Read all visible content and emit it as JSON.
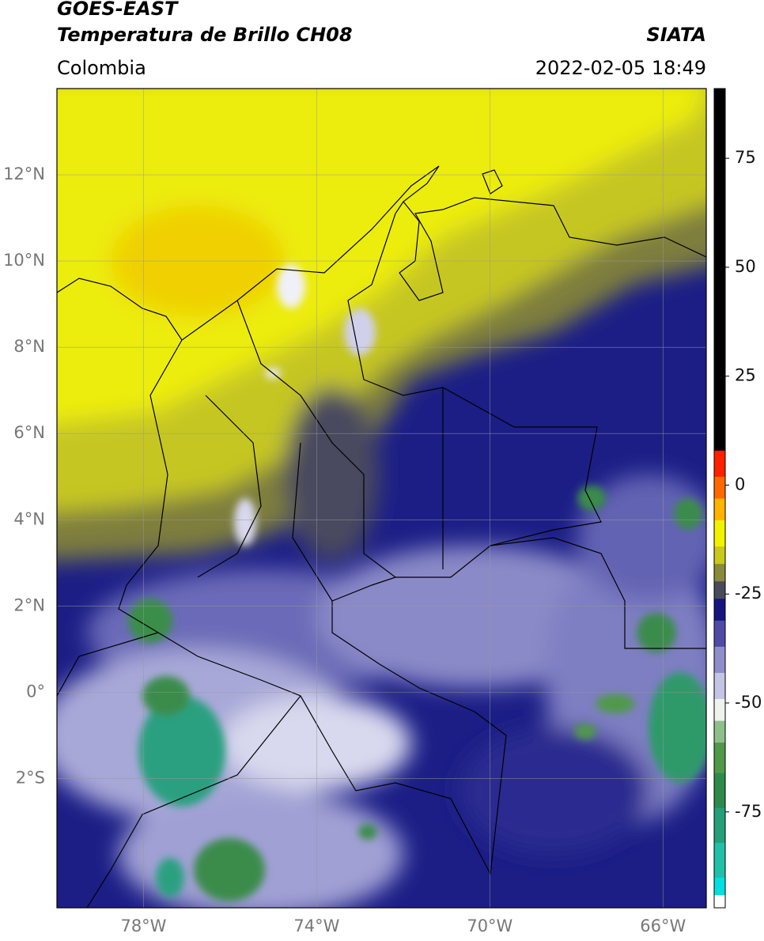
{
  "header": {
    "title": "GOES-EAST",
    "subtitle": "Temperatura de Brillo CH08",
    "source": "SIATA",
    "region": "Colombia",
    "datetime": "2022-02-05 18:49"
  },
  "map": {
    "xlim": [
      -80,
      -65
    ],
    "ylim": [
      -5,
      14
    ],
    "xticks": [
      {
        "value": -78,
        "label": "78°W"
      },
      {
        "value": -74,
        "label": "74°W"
      },
      {
        "value": -70,
        "label": "70°W"
      },
      {
        "value": -66,
        "label": "66°W"
      }
    ],
    "yticks": [
      {
        "value": 12,
        "label": "12°N"
      },
      {
        "value": 10,
        "label": "10°N"
      },
      {
        "value": 8,
        "label": "8°N"
      },
      {
        "value": 6,
        "label": "6°N"
      },
      {
        "value": 4,
        "label": "4°N"
      },
      {
        "value": 2,
        "label": "2°N"
      },
      {
        "value": 0,
        "label": "0°"
      },
      {
        "value": -2,
        "label": "2°S"
      }
    ]
  },
  "colorbar": {
    "lim": [
      -97,
      91
    ],
    "ticks": [
      75,
      50,
      25,
      0,
      -25,
      -50,
      -75
    ],
    "bands": [
      {
        "value": -97,
        "color": "#ffffff"
      },
      {
        "value": -94,
        "color": "#00e0e0"
      },
      {
        "value": -90,
        "color": "#1fc0a8"
      },
      {
        "value": -82,
        "color": "#22a07a"
      },
      {
        "value": -74,
        "color": "#2e8a4a"
      },
      {
        "value": -66,
        "color": "#4f9a48"
      },
      {
        "value": -59,
        "color": "#8fbf88"
      },
      {
        "value": -54,
        "color": "#eef3ee"
      },
      {
        "value": -49,
        "color": "#c4c4e4"
      },
      {
        "value": -43,
        "color": "#8e8ecb"
      },
      {
        "value": -37,
        "color": "#4c4ca6"
      },
      {
        "value": -31,
        "color": "#15157e"
      },
      {
        "value": -26,
        "color": "#4a4a5c"
      },
      {
        "value": -22,
        "color": "#8a8a3c"
      },
      {
        "value": -18,
        "color": "#c9c91c"
      },
      {
        "value": -14,
        "color": "#f2f200"
      },
      {
        "value": -8,
        "color": "#ffb400"
      },
      {
        "value": -3,
        "color": "#ff6a00"
      },
      {
        "value": 2,
        "color": "#ff2000"
      },
      {
        "value": 8,
        "color": "#000000"
      }
    ]
  }
}
